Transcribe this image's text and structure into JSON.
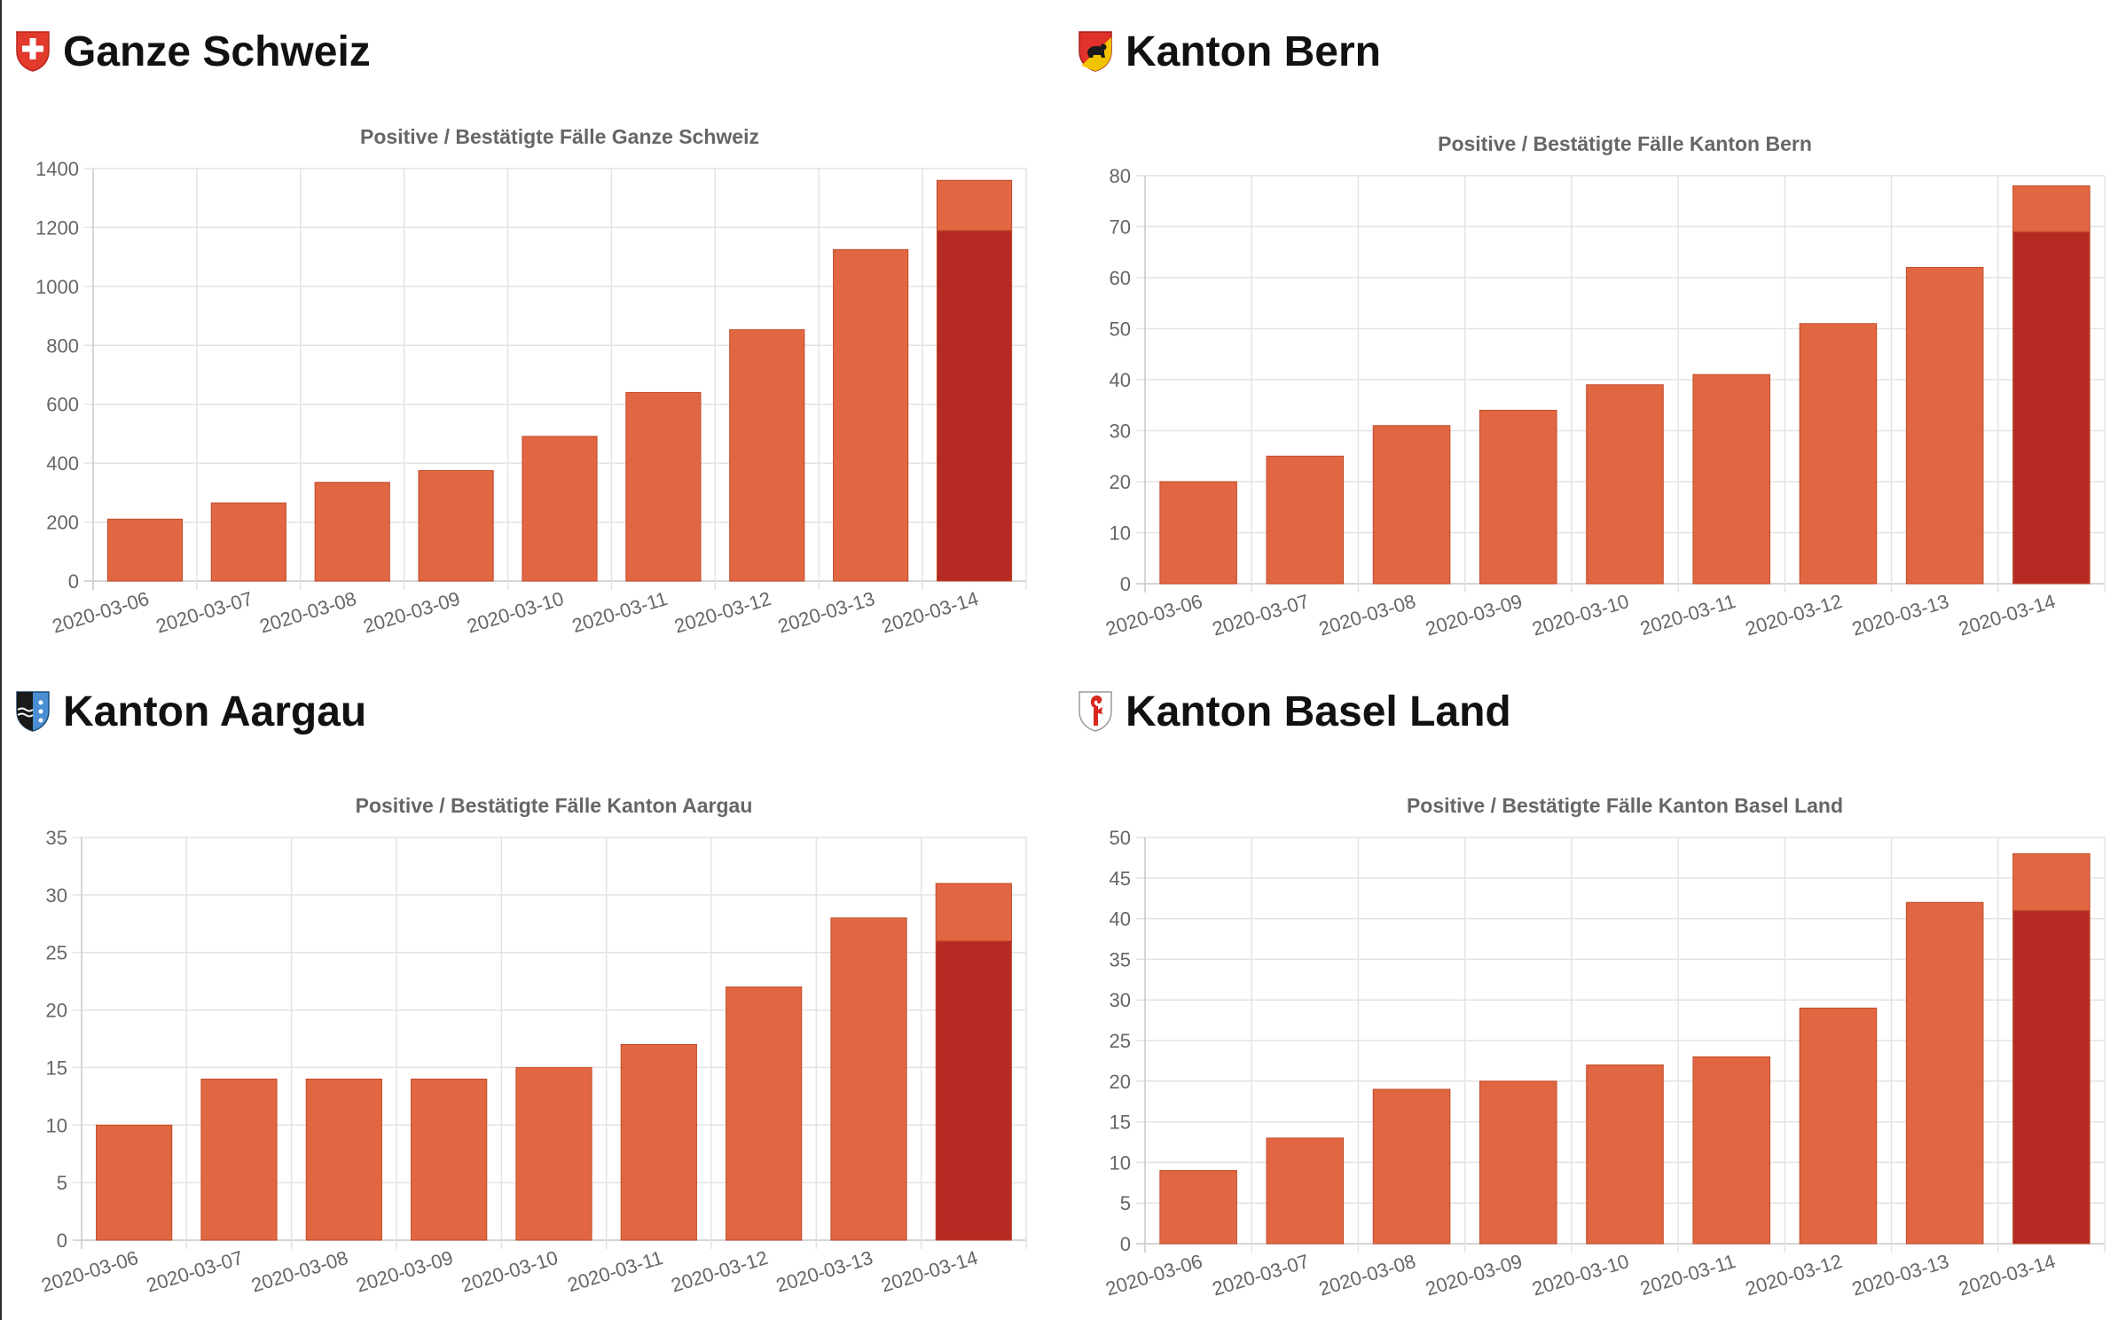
{
  "panels": [
    {
      "heading": "Ganze Schweiz",
      "crest_icon": "swiss-cross-icon",
      "chart_data": {
        "type": "bar",
        "title": "Positive / Bestätigte Fälle Ganze Schweiz",
        "categories": [
          "2020-03-06",
          "2020-03-07",
          "2020-03-08",
          "2020-03-09",
          "2020-03-10",
          "2020-03-11",
          "2020-03-12",
          "2020-03-13",
          "2020-03-14"
        ],
        "series": [
          {
            "values": [
              0,
              0,
              0,
              0,
              0,
              0,
              0,
              0,
              1190
            ],
            "color": "#b52a22"
          },
          {
            "values": [
              210,
              265,
              335,
              375,
              491,
              640,
              853,
              1125,
              170
            ],
            "color": "#e06742"
          }
        ],
        "stacked": true,
        "ylim": [
          0,
          1400
        ],
        "yticks": [
          0,
          200,
          400,
          600,
          800,
          1000,
          1200,
          1400
        ],
        "grid": true,
        "legend": "none"
      }
    },
    {
      "heading": "Kanton Bern",
      "crest_icon": "bern-bear-crest-icon",
      "chart_data": {
        "type": "bar",
        "title": "Positive / Bestätigte Fälle Kanton Bern",
        "categories": [
          "2020-03-06",
          "2020-03-07",
          "2020-03-08",
          "2020-03-09",
          "2020-03-10",
          "2020-03-11",
          "2020-03-12",
          "2020-03-13",
          "2020-03-14"
        ],
        "series": [
          {
            "values": [
              0,
              0,
              0,
              0,
              0,
              0,
              0,
              0,
              69
            ],
            "color": "#b52a22"
          },
          {
            "values": [
              20,
              25,
              31,
              34,
              39,
              41,
              51,
              62,
              9
            ],
            "color": "#e06742"
          }
        ],
        "stacked": true,
        "ylim": [
          0,
          80
        ],
        "yticks": [
          0,
          10,
          20,
          30,
          40,
          50,
          60,
          70,
          80
        ],
        "grid": true,
        "legend": "none"
      }
    },
    {
      "heading": "Kanton Aargau",
      "crest_icon": "aargau-crest-icon",
      "chart_data": {
        "type": "bar",
        "title": "Positive / Bestätigte Fälle Kanton Aargau",
        "categories": [
          "2020-03-06",
          "2020-03-07",
          "2020-03-08",
          "2020-03-09",
          "2020-03-10",
          "2020-03-11",
          "2020-03-12",
          "2020-03-13",
          "2020-03-14"
        ],
        "series": [
          {
            "values": [
              0,
              0,
              0,
              0,
              0,
              0,
              0,
              0,
              26
            ],
            "color": "#b52a22"
          },
          {
            "values": [
              10,
              14,
              14,
              14,
              15,
              17,
              22,
              28,
              5
            ],
            "color": "#e06742"
          }
        ],
        "stacked": true,
        "ylim": [
          0,
          35
        ],
        "yticks": [
          0,
          5,
          10,
          15,
          20,
          25,
          30,
          35
        ],
        "grid": true,
        "legend": "none"
      }
    },
    {
      "heading": "Kanton Basel Land",
      "crest_icon": "basel-staff-crest-icon",
      "chart_data": {
        "type": "bar",
        "title": "Positive / Bestätigte Fälle Kanton Basel Land",
        "categories": [
          "2020-03-06",
          "2020-03-07",
          "2020-03-08",
          "2020-03-09",
          "2020-03-10",
          "2020-03-11",
          "2020-03-12",
          "2020-03-13",
          "2020-03-14"
        ],
        "series": [
          {
            "values": [
              0,
              0,
              0,
              0,
              0,
              0,
              0,
              0,
              41
            ],
            "color": "#b52a22"
          },
          {
            "values": [
              9,
              13,
              19,
              20,
              22,
              23,
              29,
              42,
              7
            ],
            "color": "#e06742"
          }
        ],
        "stacked": true,
        "ylim": [
          0,
          50
        ],
        "yticks": [
          0,
          5,
          10,
          15,
          20,
          25,
          30,
          35,
          40,
          45,
          50
        ],
        "grid": true,
        "legend": "none"
      }
    }
  ],
  "theme": {
    "grid_color": "#e3e3e3",
    "axis_color": "#c9c9c9",
    "text_color": "#666666"
  }
}
